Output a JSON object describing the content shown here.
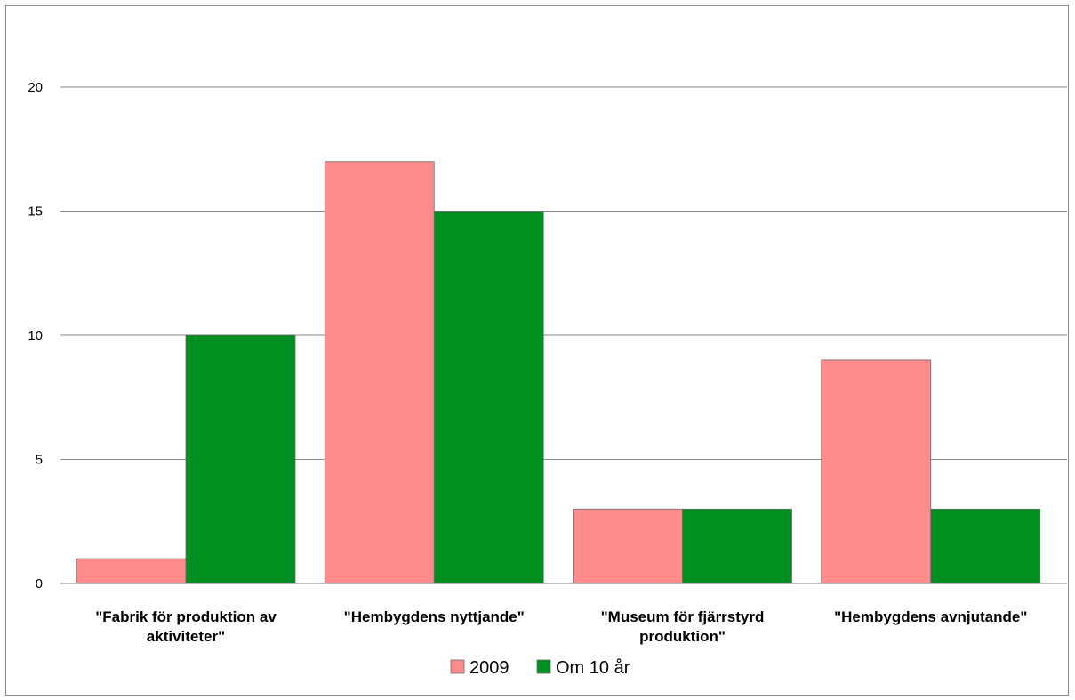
{
  "chart_data": {
    "type": "bar",
    "title": "",
    "xlabel": "",
    "ylabel": "",
    "ylim": [
      0,
      20
    ],
    "yticks": [
      0,
      5,
      10,
      15,
      20
    ],
    "grid": true,
    "legend_position": "bottom",
    "categories": [
      [
        "\"Fabrik för produktion av",
        "aktiviteter\""
      ],
      [
        "\"Hembygdens nyttjande\""
      ],
      [
        "\"Museum för fjärrstyrd",
        "produktion\""
      ],
      [
        "\"Hembygdens avnjutande\""
      ]
    ],
    "series": [
      {
        "name": "2009",
        "color": "#ff8c8c",
        "values": [
          1,
          17,
          3,
          9
        ]
      },
      {
        "name": "Om 10 år",
        "color": "#009022",
        "values": [
          10,
          15,
          3,
          3
        ]
      }
    ]
  }
}
